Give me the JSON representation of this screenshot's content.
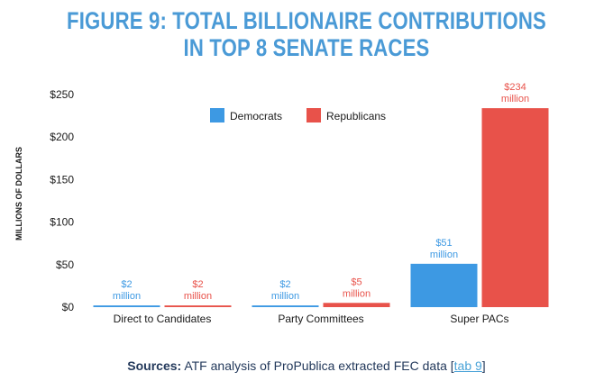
{
  "colors": {
    "title": "#4a9ad6",
    "democrats": "#3d99e3",
    "republicans": "#e8524a",
    "axis_text": "#1a1a1a",
    "grid": "#e6e6e6",
    "source": "#23395b",
    "link": "#4aa3d8"
  },
  "chart_data": {
    "type": "bar",
    "title": [
      "FIGURE 9: TOTAL BILLIONAIRE CONTRIBUTIONS",
      "IN TOP 8 SENATE RACES"
    ],
    "ylabel": "MILLIONS OF DOLLARS",
    "xlabel": "",
    "ylim": [
      0,
      250
    ],
    "yticks": [
      0,
      50,
      100,
      150,
      200,
      250
    ],
    "ytick_labels": [
      "$0",
      "$50",
      "$100",
      "$150",
      "$200",
      "$250"
    ],
    "categories": [
      "Direct to Candidates",
      "Party Committees",
      "Super PACs"
    ],
    "series": [
      {
        "name": "Democrats",
        "color": "#3d99e3",
        "values": [
          2,
          2,
          51
        ],
        "labels": [
          [
            "$2",
            "million"
          ],
          [
            "$2",
            "million"
          ],
          [
            "$51",
            "million"
          ]
        ]
      },
      {
        "name": "Republicans",
        "color": "#e8524a",
        "values": [
          2,
          5,
          234
        ],
        "labels": [
          [
            "$2",
            "million"
          ],
          [
            "$5",
            "million"
          ],
          [
            "$234",
            "million"
          ]
        ]
      }
    ],
    "legend_position": "top-center",
    "grid": false
  },
  "source": {
    "label": "Sources:",
    "text": " ATF analysis of ProPublica extracted FEC data [",
    "link": "tab 9",
    "close": "]"
  }
}
